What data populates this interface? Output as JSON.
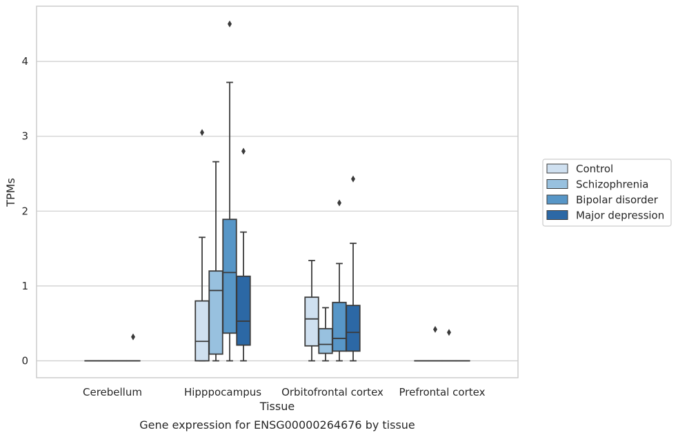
{
  "chart_data": {
    "type": "box",
    "title": "",
    "caption": "Gene expression for ENSG00000264676 by tissue",
    "xlabel": "Tissue",
    "ylabel": "TPMs",
    "ylim": [
      -0.22,
      4.75
    ],
    "yticks": [
      0,
      1,
      2,
      3,
      4
    ],
    "grid": true,
    "legend_placement": "right",
    "categories": [
      "Cerebellum",
      "Hipppocampus",
      "Orbitofrontal cortex",
      "Prefrontal cortex"
    ],
    "series": [
      {
        "name": "Control",
        "color": "#cfe0f0",
        "boxes": [
          {
            "min": 0,
            "q1": 0,
            "median": 0,
            "q3": 0,
            "max": 0,
            "outliers": []
          },
          {
            "min": 0,
            "q1": 0,
            "median": 0.26,
            "q3": 0.8,
            "max": 1.65,
            "outliers": [
              3.05
            ]
          },
          {
            "min": 0,
            "q1": 0.2,
            "median": 0.56,
            "q3": 0.85,
            "max": 1.34,
            "outliers": []
          },
          {
            "min": 0,
            "q1": 0,
            "median": 0,
            "q3": 0,
            "max": 0,
            "outliers": []
          }
        ]
      },
      {
        "name": "Schizophrenia",
        "color": "#98c1df",
        "boxes": [
          {
            "min": 0,
            "q1": 0,
            "median": 0,
            "q3": 0,
            "max": 0,
            "outliers": []
          },
          {
            "min": 0,
            "q1": 0.09,
            "median": 0.94,
            "q3": 1.2,
            "max": 2.66,
            "outliers": []
          },
          {
            "min": 0,
            "q1": 0.1,
            "median": 0.22,
            "q3": 0.43,
            "max": 0.71,
            "outliers": []
          },
          {
            "min": 0,
            "q1": 0,
            "median": 0,
            "q3": 0,
            "max": 0,
            "outliers": []
          }
        ]
      },
      {
        "name": "Bipolar disorder",
        "color": "#5796c7",
        "boxes": [
          {
            "min": 0,
            "q1": 0,
            "median": 0,
            "q3": 0,
            "max": 0,
            "outliers": []
          },
          {
            "min": 0,
            "q1": 0.37,
            "median": 1.18,
            "q3": 1.89,
            "max": 3.72,
            "outliers": [
              4.5
            ]
          },
          {
            "min": 0,
            "q1": 0.13,
            "median": 0.3,
            "q3": 0.78,
            "max": 1.3,
            "outliers": [
              2.11
            ]
          },
          {
            "min": 0,
            "q1": 0,
            "median": 0,
            "q3": 0,
            "max": 0,
            "outliers": []
          }
        ]
      },
      {
        "name": "Major depression",
        "color": "#2c68a5",
        "boxes": [
          {
            "min": 0,
            "q1": 0,
            "median": 0,
            "q3": 0,
            "max": 0,
            "outliers": [
              0.32
            ]
          },
          {
            "min": 0,
            "q1": 0.21,
            "median": 0.53,
            "q3": 1.13,
            "max": 1.72,
            "outliers": [
              2.8
            ]
          },
          {
            "min": 0,
            "q1": 0.13,
            "median": 0.38,
            "q3": 0.74,
            "max": 1.57,
            "outliers": [
              2.43
            ]
          },
          {
            "min": 0,
            "q1": 0,
            "median": 0,
            "q3": 0,
            "max": 0,
            "outliers": []
          }
        ]
      }
    ],
    "extra_outliers": [
      {
        "category": "Prefrontal cortex",
        "value": 0.42
      },
      {
        "category": "Prefrontal cortex",
        "value": 0.38
      }
    ]
  }
}
